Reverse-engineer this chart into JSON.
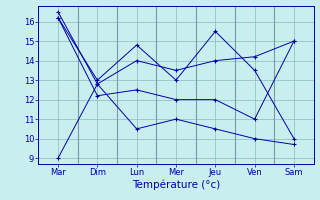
{
  "xlabel": "Température (°c)",
  "categories": [
    "Mar",
    "Dim",
    "Lun",
    "Mer",
    "Jeu",
    "Ven",
    "Sam"
  ],
  "ylim": [
    8.7,
    16.8
  ],
  "yticks": [
    9,
    10,
    11,
    12,
    13,
    14,
    15,
    16
  ],
  "line_color": "#0000AA",
  "bg_color": "#C8EEEE",
  "grid_color": "#88BBBB",
  "sep_color": "#7799AA",
  "series": [
    [
      16.5,
      12.8,
      14.0,
      13.5,
      14.0,
      14.2,
      15.0
    ],
    [
      9.0,
      12.8,
      10.5,
      11.0,
      10.5,
      10.0,
      9.7
    ],
    [
      16.2,
      12.2,
      12.5,
      12.0,
      12.0,
      11.0,
      15.0
    ],
    [
      16.2,
      13.0,
      14.8,
      13.0,
      15.5,
      13.5,
      10.0
    ]
  ],
  "figsize": [
    3.2,
    2.0
  ],
  "dpi": 100,
  "tick_fontsize": 6,
  "xlabel_fontsize": 7.5
}
